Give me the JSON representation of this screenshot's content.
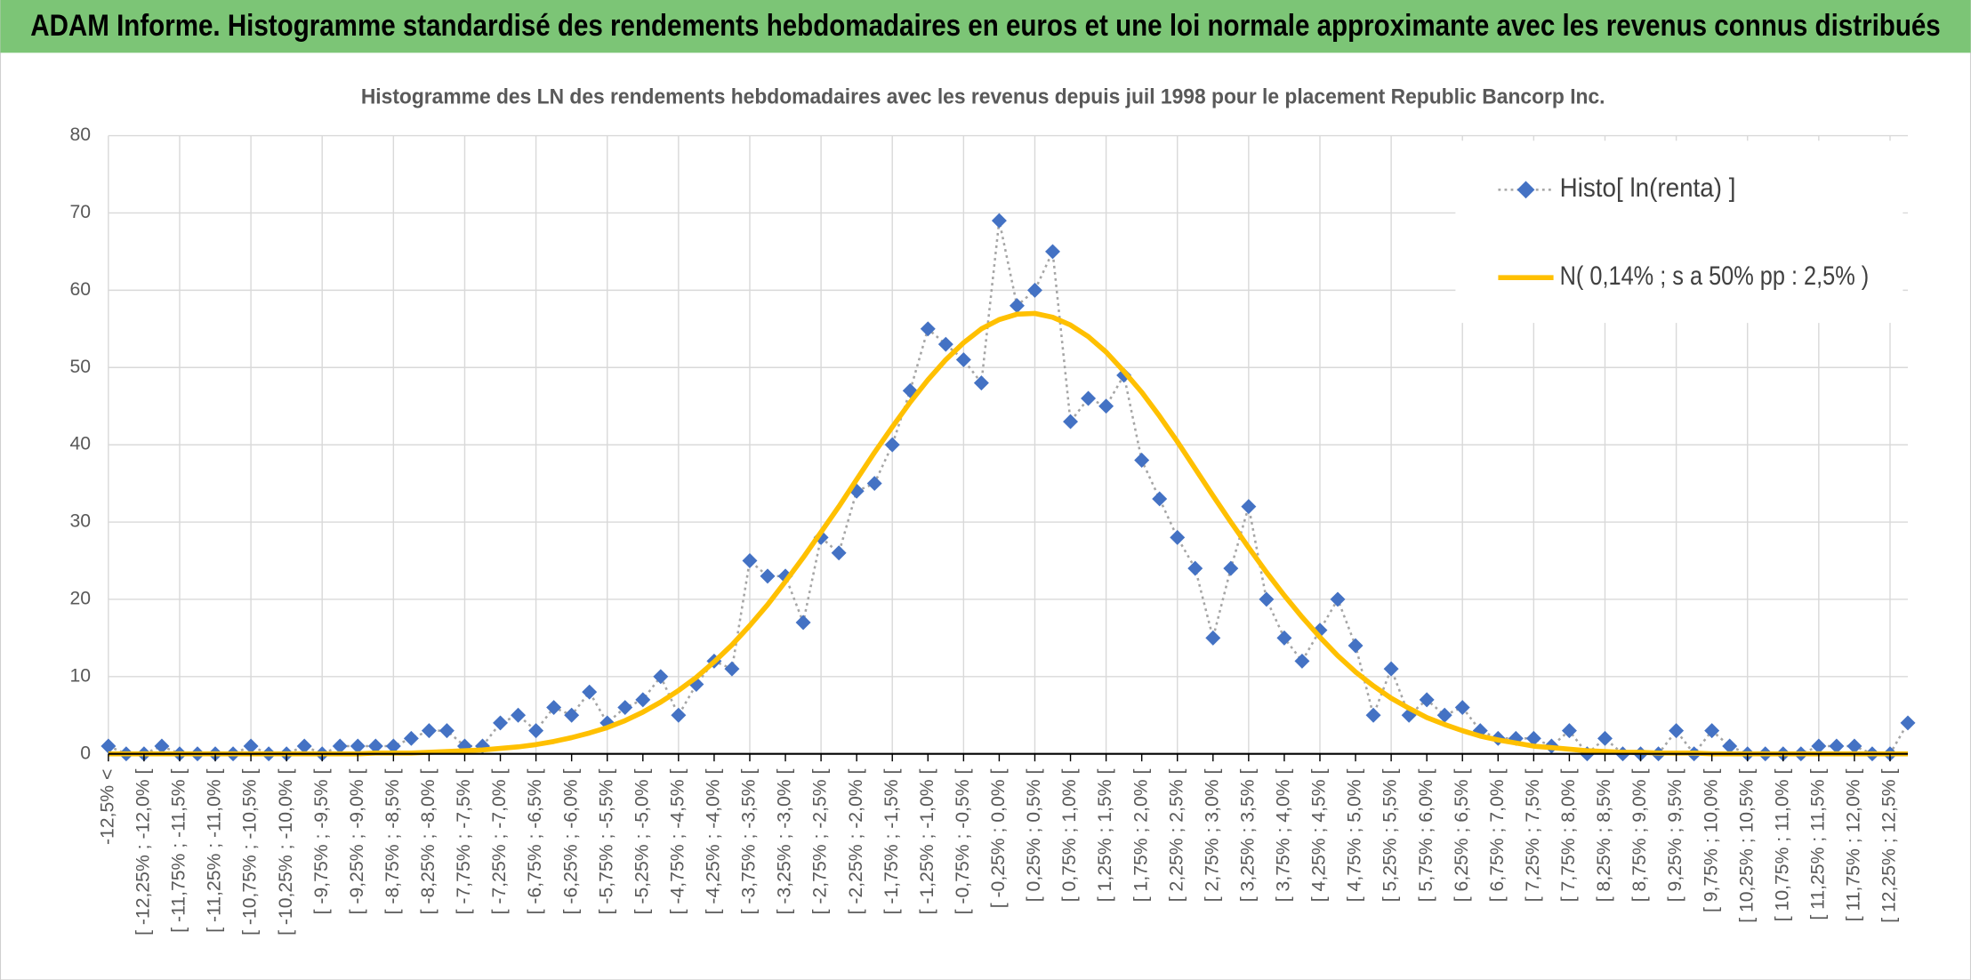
{
  "header": {
    "title": "ADAM Informe. Histogramme standardisé des rendements hebdomadaires en euros et une loi normale approximante avec les revenus connus distribués"
  },
  "chart_data": {
    "type": "line",
    "title": "Histogramme des LN des rendements hebdomadaires avec les revenus depuis juil 1998 pour le placement Republic Bancorp Inc.",
    "categories": [
      "-12,5% <",
      null,
      "[ -12,25% ; -12,0% [",
      null,
      "[ -11,75% ; -11,5% [",
      null,
      "[ -11,25% ; -11,0% [",
      null,
      "[ -10,75% ; -10,5% [",
      null,
      "[ -10,25% ; -10,0% [",
      null,
      "[ -9,75% ; -9,5% [",
      null,
      "[ -9,25% ; -9,0% [",
      null,
      "[ -8,75% ; -8,5% [",
      null,
      "[ -8,25% ; -8,0% [",
      null,
      "[ -7,75% ; -7,5% [",
      null,
      "[ -7,25% ; -7,0% [",
      null,
      "[ -6,75% ; -6,5% [",
      null,
      "[ -6,25% ; -6,0% [",
      null,
      "[ -5,75% ; -5,5% [",
      null,
      "[ -5,25% ; -5,0% [",
      null,
      "[ -4,75% ; -4,5% [",
      null,
      "[ -4,25% ; -4,0% [",
      null,
      "[ -3,75% ; -3,5% [",
      null,
      "[ -3,25% ; -3,0% [",
      null,
      "[ -2,75% ; -2,5% [",
      null,
      "[ -2,25% ; -2,0% [",
      null,
      "[ -1,75% ; -1,5% [",
      null,
      "[ -1,25% ; -1,0% [",
      null,
      "[ -0,75% ; -0,5% [",
      null,
      "[ -0,25% ; 0,0% [",
      null,
      "[ 0,25% ; 0,5% [",
      null,
      "[ 0,75% ; 1,0% [",
      null,
      "[ 1,25% ; 1,5% [",
      null,
      "[ 1,75% ; 2,0% [",
      null,
      "[ 2,25% ; 2,5% [",
      null,
      "[ 2,75% ; 3,0% [",
      null,
      "[ 3,25% ; 3,5% [",
      null,
      "[ 3,75% ; 4,0% [",
      null,
      "[ 4,25% ; 4,5% [",
      null,
      "[ 4,75% ; 5,0% [",
      null,
      "[ 5,25% ; 5,5% [",
      null,
      "[ 5,75% ; 6,0% [",
      null,
      "[ 6,25% ; 6,5% [",
      null,
      "[ 6,75% ; 7,0% [",
      null,
      "[ 7,25% ; 7,5% [",
      null,
      "[ 7,75% ; 8,0% [",
      null,
      "[ 8,25% ; 8,5% [",
      null,
      "[ 8,75% ; 9,0% [",
      null,
      "[ 9,25% ; 9,5% [",
      null,
      "[ 9,75% ; 10,0% [",
      null,
      "[ 10,25% ; 10,5% [",
      null,
      "[ 10,75% ; 11,0% [",
      null,
      "[ 11,25% ; 11,5% [",
      null,
      "[ 11,75% ; 12,0% [",
      null,
      "[ 12,25% ; 12,5% [",
      null
    ],
    "series": [
      {
        "name": "Histo[ ln(renta) ]",
        "color": "#4472c4",
        "values": [
          1,
          0,
          0,
          1,
          0,
          0,
          0,
          0,
          1,
          0,
          0,
          1,
          0,
          1,
          1,
          1,
          1,
          2,
          3,
          3,
          1,
          1,
          4,
          5,
          3,
          6,
          5,
          8,
          4,
          6,
          7,
          10,
          5,
          9,
          12,
          11,
          25,
          23,
          23,
          17,
          28,
          26,
          34,
          35,
          40,
          47,
          55,
          53,
          51,
          48,
          69,
          58,
          60,
          65,
          43,
          46,
          45,
          49,
          38,
          33,
          28,
          24,
          15,
          24,
          32,
          20,
          15,
          12,
          16,
          20,
          14,
          5,
          11,
          5,
          7,
          5,
          6,
          3,
          2,
          2,
          2,
          1,
          3,
          0,
          2,
          0,
          0,
          0,
          3,
          0,
          3,
          1,
          0,
          0,
          0,
          0,
          1,
          1,
          1,
          0,
          0,
          4
        ]
      },
      {
        "name": "N( 0,14% ; s a 50% pp : 2,5% )",
        "color": "#ffc000",
        "values": [
          0,
          0,
          0,
          0,
          0,
          0,
          0,
          0,
          0,
          0,
          0,
          0,
          0,
          0,
          0,
          0.1,
          0.1,
          0.1,
          0.2,
          0.3,
          0.4,
          0.5,
          0.7,
          0.9,
          1.2,
          1.6,
          2.1,
          2.7,
          3.4,
          4.3,
          5.4,
          6.7,
          8.2,
          9.9,
          11.9,
          14.1,
          16.6,
          19.3,
          22.3,
          25.4,
          28.7,
          32.0,
          35.5,
          39.0,
          42.3,
          45.5,
          48.4,
          51.0,
          53.2,
          55.0,
          56.2,
          56.9,
          57.0,
          56.5,
          55.5,
          54.0,
          52.0,
          49.5,
          46.8,
          43.7,
          40.4,
          36.9,
          33.4,
          30.0,
          26.7,
          23.5,
          20.5,
          17.7,
          15.1,
          12.7,
          10.6,
          8.8,
          7.2,
          5.9,
          4.7,
          3.8,
          3.0,
          2.3,
          1.8,
          1.4,
          1.0,
          0.8,
          0.6,
          0.4,
          0.3,
          0.2,
          0.2,
          0.1,
          0.1,
          0.1,
          0,
          0,
          0,
          0,
          0,
          0,
          0,
          0,
          0,
          0,
          0,
          0
        ]
      }
    ],
    "ylim": [
      0,
      80
    ],
    "yticks": [
      0,
      10,
      20,
      30,
      40,
      50,
      60,
      70,
      80
    ],
    "grid": true,
    "legend": "top-right"
  }
}
